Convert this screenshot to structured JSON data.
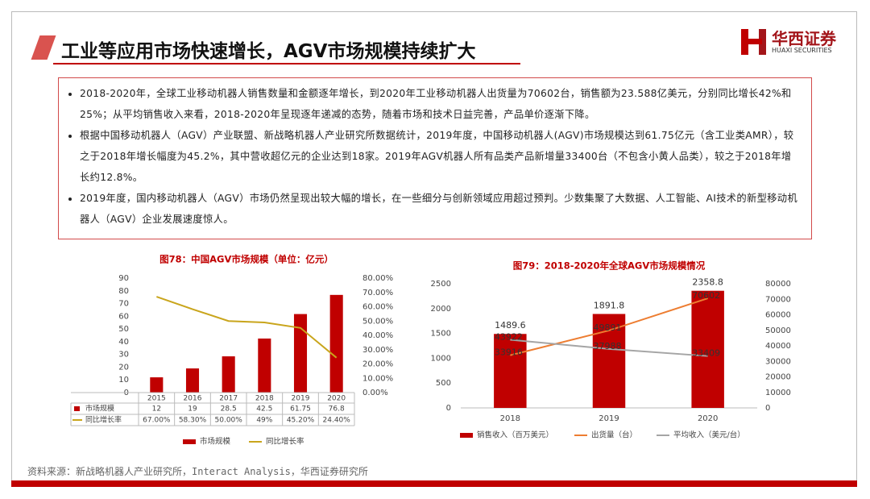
{
  "header": {
    "title": "工业等应用市场快速增长，AGV市场规模持续扩大",
    "logo_name": "华西证券",
    "logo_sub": "HUAXI SECURITIES"
  },
  "bullets": [
    "2018-2020年，全球工业移动机器人销售数量和金额逐年增长，到2020年工业移动机器人出货量为70602台，销售额为23.588亿美元，分别同比增长42%和25%；从平均销售收入来看，2018-2020年呈现逐年递减的态势，随着市场和技术日益完善，产品单价逐渐下降。",
    "根据中国移动机器人（AGV）产业联盟、新战略机器人产业研究所数据统计，2019年度，中国移动机器人(AGV)市场规模达到61.75亿元（含工业类AMR），较之于2018年增长幅度为45.2%，其中营收超亿元的企业达到18家。2019年AGV机器人所有品类产品新增量33400台（不包含小黄人品类），较之于2018年增长约12.8%。",
    "2019年度，国内移动机器人（AGV）市场仍然呈现出较大幅的增长，在一些细分与创新领域应用超过预判。少数集聚了大数据、人工智能、AI技术的新型移动机器人（AGV）企业发展速度惊人。"
  ],
  "source": "资料来源：新战略机器人产业研究所，Interact Analysis，华西证券研究所",
  "chart_data": [
    {
      "type": "bar",
      "title": "图78：中国AGV市场规模（单位：亿元）",
      "data_table": true,
      "data_labels": false,
      "grid": false,
      "categories": [
        "2015",
        "2016",
        "2017",
        "2018",
        "2019",
        "2020"
      ],
      "series": [
        {
          "name": "市场规模",
          "type": "bar",
          "color": "#c00000",
          "values": [
            12,
            19,
            28.5,
            42.5,
            61.75,
            76.8
          ]
        },
        {
          "name": "同比增长率",
          "type": "line",
          "axis": "y2",
          "color": "#c9a51c",
          "values": [
            67,
            58.3,
            50,
            49,
            45.2,
            24.4
          ],
          "value_labels": [
            "67.00%",
            "58.30%",
            "50.00%",
            "49%",
            "45.20%",
            "24.40%"
          ]
        }
      ],
      "ylim": [
        0,
        90
      ],
      "yticks": [
        0,
        10,
        20,
        30,
        40,
        50,
        60,
        70,
        80,
        90
      ],
      "y2lim": [
        0,
        80
      ],
      "y2ticks": [
        {
          "value": 0,
          "label": "0.00%"
        },
        {
          "value": 10,
          "label": "10.00%"
        },
        {
          "value": 20,
          "label": "20.00%"
        },
        {
          "value": 30,
          "label": "30.00%"
        },
        {
          "value": 40,
          "label": "40.00%"
        },
        {
          "value": 50,
          "label": "50.00%"
        },
        {
          "value": 60,
          "label": "60.00%"
        },
        {
          "value": 70,
          "label": "70.00%"
        },
        {
          "value": 80,
          "label": "80.00%"
        }
      ]
    },
    {
      "type": "bar",
      "title": "图79：2018-2020年全球AGV市场规模情况",
      "data_table": false,
      "data_labels": true,
      "grid": false,
      "categories": [
        "2018",
        "2019",
        "2020"
      ],
      "series": [
        {
          "name": "销售收入（百万美元）",
          "type": "bar",
          "color": "#c00000",
          "values": [
            1489.6,
            1891.8,
            2358.8
          ]
        },
        {
          "name": "出货量（台）",
          "type": "line",
          "axis": "y2",
          "color": "#ed7d31",
          "values": [
            33916,
            49891,
            70602
          ]
        },
        {
          "name": "平均收入（美元/台）",
          "type": "line",
          "axis": "y2",
          "color": "#a5a5a5",
          "values": [
            43922,
            37988,
            33409
          ]
        }
      ],
      "ylim": [
        0,
        2500
      ],
      "yticks": [
        0,
        500,
        1000,
        1500,
        2000,
        2500
      ],
      "y2lim": [
        0,
        80000
      ],
      "y2ticks": [
        0,
        10000,
        20000,
        30000,
        40000,
        50000,
        60000,
        70000,
        80000
      ]
    }
  ]
}
